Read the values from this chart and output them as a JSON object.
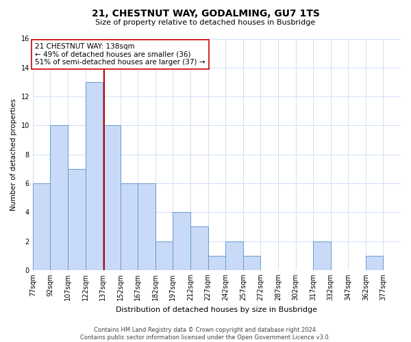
{
  "title": "21, CHESTNUT WAY, GODALMING, GU7 1TS",
  "subtitle": "Size of property relative to detached houses in Busbridge",
  "xlabel": "Distribution of detached houses by size in Busbridge",
  "ylabel": "Number of detached properties",
  "bins_left": [
    77,
    92,
    107,
    122,
    137,
    152,
    167,
    182,
    197,
    212,
    227,
    242,
    257,
    272,
    287,
    302,
    317,
    332,
    347,
    362,
    377
  ],
  "bin_width": 15,
  "counts": [
    6,
    10,
    7,
    13,
    10,
    6,
    6,
    2,
    4,
    3,
    1,
    2,
    1,
    0,
    0,
    0,
    2,
    0,
    0,
    1,
    0
  ],
  "bar_color": "#c9daf8",
  "bar_edge_color": "#6699cc",
  "property_line_x": 138,
  "property_line_color": "#cc0000",
  "annotation_line1": "21 CHESTNUT WAY: 138sqm",
  "annotation_line2": "← 49% of detached houses are smaller (36)",
  "annotation_line3": "51% of semi-detached houses are larger (37) →",
  "annotation_box_edge_color": "#cc0000",
  "ylim": [
    0,
    16
  ],
  "yticks": [
    0,
    2,
    4,
    6,
    8,
    10,
    12,
    14,
    16
  ],
  "tick_labels": [
    "77sqm",
    "92sqm",
    "107sqm",
    "122sqm",
    "137sqm",
    "152sqm",
    "167sqm",
    "182sqm",
    "197sqm",
    "212sqm",
    "227sqm",
    "242sqm",
    "257sqm",
    "272sqm",
    "287sqm",
    "302sqm",
    "317sqm",
    "332sqm",
    "347sqm",
    "362sqm",
    "377sqm"
  ],
  "footer": "Contains HM Land Registry data © Crown copyright and database right 2024.\nContains public sector information licensed under the Open Government Licence v3.0.",
  "background_color": "#ffffff",
  "grid_color": "#d0dff8",
  "title_fontsize": 10,
  "subtitle_fontsize": 8,
  "xlabel_fontsize": 8,
  "ylabel_fontsize": 7.5,
  "tick_fontsize": 7,
  "annotation_fontsize": 7.5,
  "footer_fontsize": 6
}
